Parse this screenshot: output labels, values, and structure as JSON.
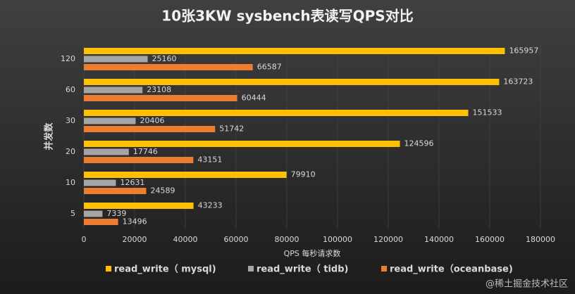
{
  "chart_data": {
    "type": "bar",
    "orientation": "horizontal",
    "title": "10张3KW sysbench表读写QPS对比",
    "x_label": "QPS 每秒请求数",
    "y_label": "并发数",
    "categories": [
      "5",
      "10",
      "20",
      "30",
      "60",
      "120"
    ],
    "series": [
      {
        "name": "read_write（ mysql)",
        "color": "#ffc000",
        "values": [
          43233,
          79910,
          124596,
          151533,
          163723,
          165957
        ]
      },
      {
        "name": "read_write（ tidb)",
        "color": "#a5a5a5",
        "values": [
          7339,
          12631,
          17746,
          20406,
          23108,
          25160
        ]
      },
      {
        "name": "read_write（oceanbase)",
        "color": "#ed7d31",
        "values": [
          13496,
          24589,
          43151,
          51742,
          60444,
          66587
        ]
      }
    ],
    "xlim": [
      0,
      180000
    ],
    "xticks": [
      0,
      20000,
      40000,
      60000,
      80000,
      100000,
      120000,
      140000,
      160000,
      180000
    ],
    "grid": true,
    "legend": "bottom",
    "watermark": "@稀土掘金技术社区"
  }
}
